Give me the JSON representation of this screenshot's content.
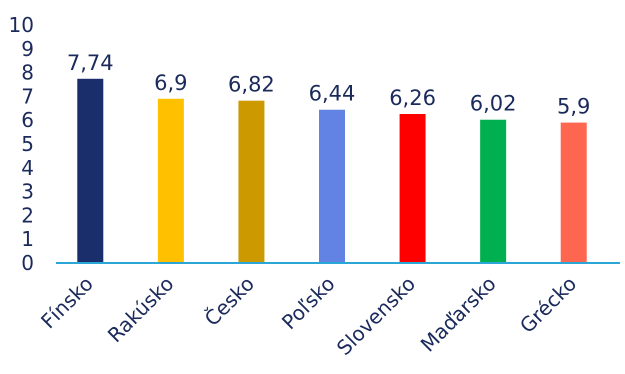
{
  "chart_data": {
    "type": "bar",
    "categories": [
      "Fínsko",
      "Rakúsko",
      "Česko",
      "Poľsko",
      "Slovensko",
      "Maďarsko",
      "Grécko"
    ],
    "values": [
      7.74,
      6.9,
      6.82,
      6.44,
      6.26,
      6.02,
      5.9
    ],
    "value_labels": [
      "7,74",
      "6,9",
      "6,82",
      "6,44",
      "6,26",
      "6,02",
      "5,9"
    ],
    "colors": [
      "#1a2e6c",
      "#ffc000",
      "#cc9900",
      "#6283e4",
      "#ff0000",
      "#00b050",
      "#ff6650"
    ],
    "ylim": [
      0,
      10
    ],
    "yticks": [
      "0",
      "1",
      "2",
      "3",
      "4",
      "5",
      "6",
      "7",
      "8",
      "9",
      "10"
    ],
    "title": "",
    "xlabel": "",
    "ylabel": "",
    "grid": false,
    "axis_color": "#2aa7d6"
  }
}
